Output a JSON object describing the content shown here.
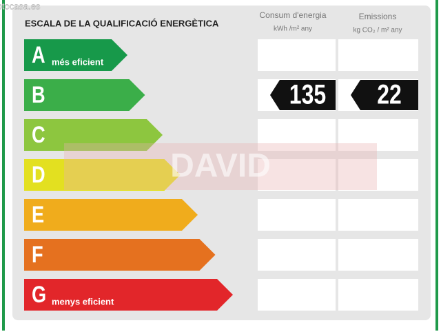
{
  "watermark": "fotocasa.es",
  "overlay": "DAVID",
  "header": {
    "title": "ESCALA DE LA QUALIFICACIÓ ENERGÈTICA",
    "columns": [
      {
        "title": "Consum d'energia",
        "unit": "kWh /m² any"
      },
      {
        "title": "Emissions",
        "unit": "kg CO₂ / m² any"
      }
    ]
  },
  "rows": [
    {
      "letter": "A",
      "label": "més eficient",
      "color": "#17994a"
    },
    {
      "letter": "B",
      "color": "#3bae49",
      "values": [
        "135",
        "22"
      ]
    },
    {
      "letter": "C",
      "color": "#8dc63f"
    },
    {
      "letter": "D",
      "color": "#e3e020"
    },
    {
      "letter": "E",
      "color": "#f0ac1c"
    },
    {
      "letter": "F",
      "color": "#e5711f"
    },
    {
      "letter": "G",
      "label": "menys eficient",
      "color": "#e2262a"
    }
  ]
}
